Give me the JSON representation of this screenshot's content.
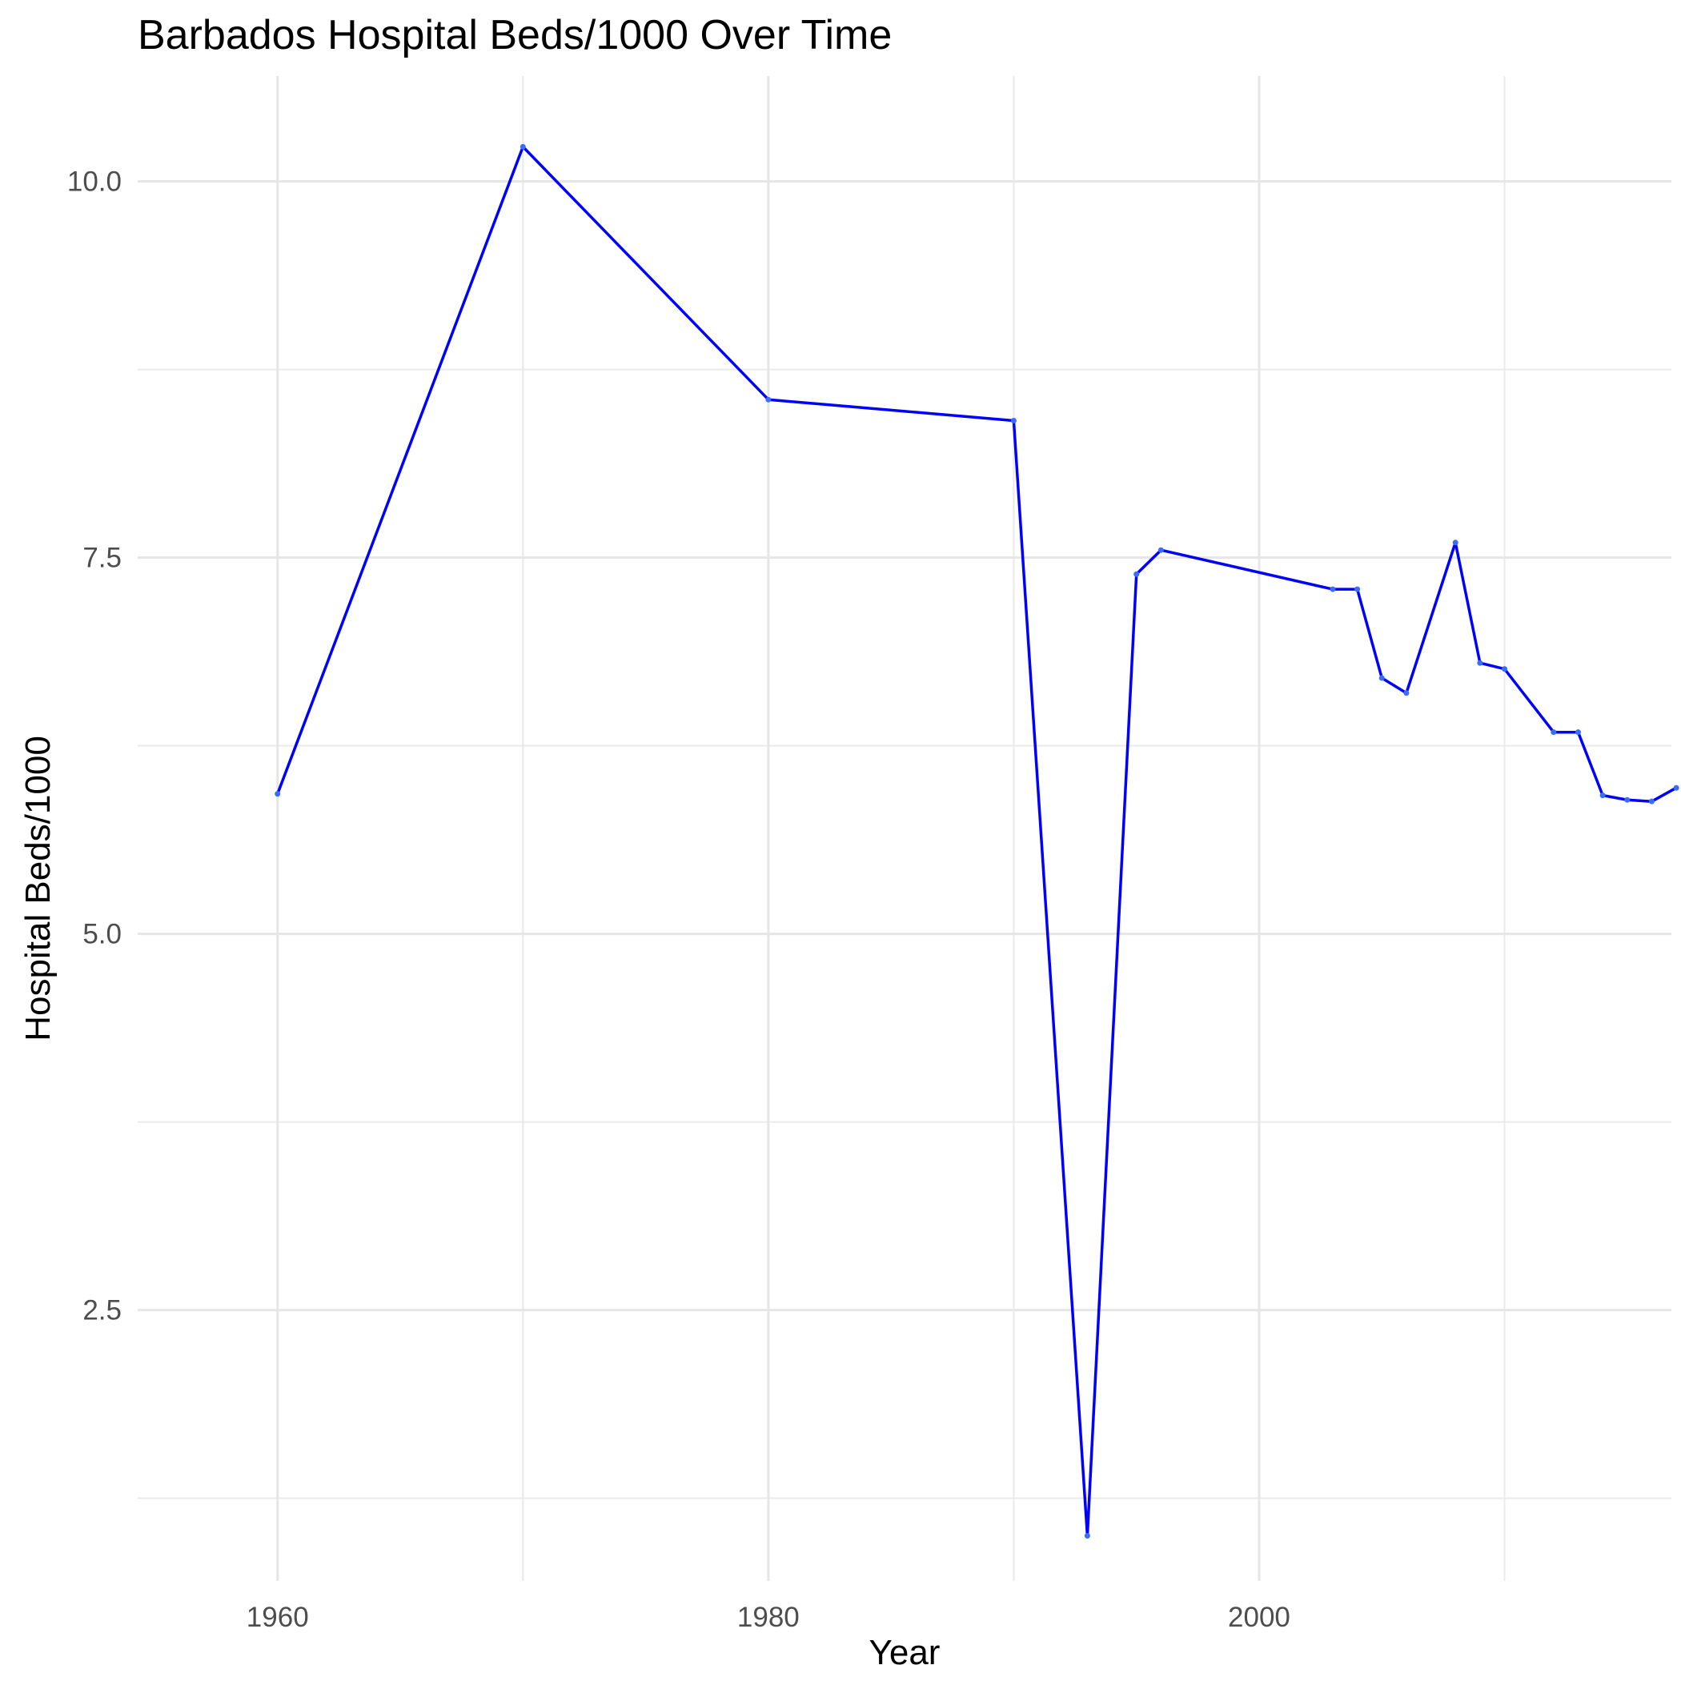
{
  "chart_data": {
    "type": "line",
    "title": "Barbados Hospital Beds/1000 Over Time",
    "xlabel": "Year",
    "ylabel": "Hospital Beds/1000",
    "x_ticks": [
      "1960",
      "1980",
      "2000"
    ],
    "y_ticks": [
      "2.5",
      "5.0",
      "7.5",
      "10.0"
    ],
    "xlim": [
      1954.3,
      2016.8
    ],
    "ylim": [
      0.7,
      10.7
    ],
    "grid": true,
    "line_color": "#0000ff",
    "series": [
      {
        "x": [
          1960,
          1970,
          1980,
          1990,
          1993,
          1995,
          1996,
          2003,
          2004,
          2005,
          2006,
          2008,
          2009,
          2010,
          2012,
          2013,
          2014,
          2015,
          2016,
          2017
        ],
        "y": [
          5.93,
          10.23,
          8.55,
          8.41,
          1.0,
          7.39,
          7.55,
          7.29,
          7.29,
          6.7,
          6.6,
          7.6,
          6.8,
          6.76,
          6.34,
          6.34,
          5.92,
          5.89,
          5.88,
          5.97
        ]
      }
    ]
  }
}
